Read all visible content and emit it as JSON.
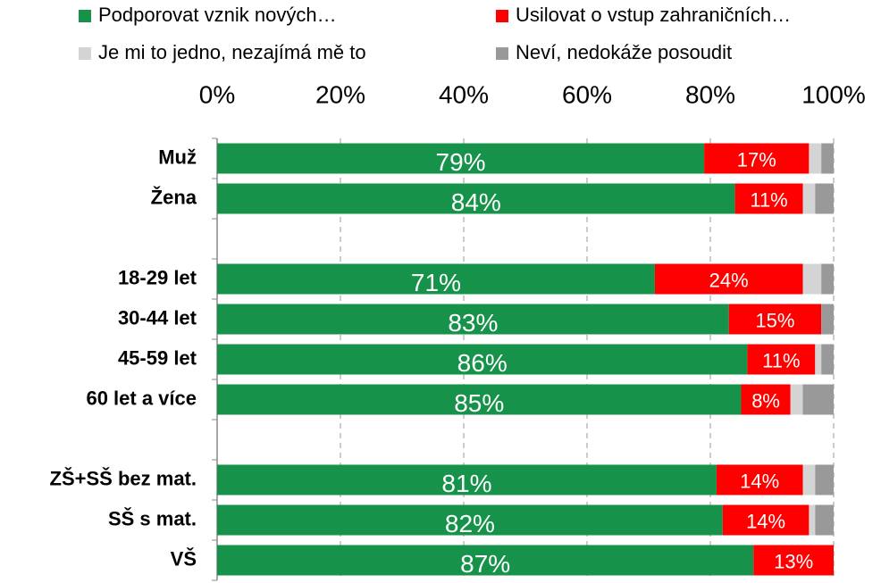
{
  "chart_data": {
    "type": "stacked_barh",
    "categories": [
      "Muž",
      "Žena",
      null,
      "18-29 let",
      "30-44 let",
      "45-59 let",
      "60 let a více",
      null,
      "ZŠ+SŠ bez mat.",
      "SŠ s mat.",
      "VŠ"
    ],
    "series": [
      {
        "name": "Podporovat vznik nových…",
        "color": "#17924a",
        "values": [
          79,
          84,
          null,
          71,
          83,
          86,
          85,
          null,
          81,
          82,
          87
        ],
        "value_labels": [
          "79%",
          "84%",
          null,
          "71%",
          "83%",
          "86%",
          "85%",
          null,
          "81%",
          "82%",
          "87%"
        ]
      },
      {
        "name": "Usilovat o vstup zahraničních…",
        "color": "#ff0000",
        "values": [
          17,
          11,
          null,
          24,
          15,
          11,
          8,
          null,
          14,
          14,
          13
        ],
        "value_labels": [
          "17%",
          "11%",
          null,
          "24%",
          "15%",
          "11%",
          "8%",
          null,
          "14%",
          "14%",
          "13%"
        ]
      },
      {
        "name": "Je mi to jedno, nezajímá mě to",
        "color": "#d4d4d4",
        "values": [
          2,
          2,
          null,
          3,
          0,
          1,
          2,
          null,
          2,
          1,
          0
        ]
      },
      {
        "name": "Neví, nedokáže posoudit",
        "color": "#999999",
        "values": [
          2,
          3,
          null,
          2,
          2,
          2,
          5,
          null,
          3,
          3,
          0
        ]
      }
    ],
    "xlim": [
      0,
      100
    ],
    "xticks": [
      {
        "value": 0,
        "label": "0%"
      },
      {
        "value": 20,
        "label": "20%"
      },
      {
        "value": 40,
        "label": "40%"
      },
      {
        "value": 60,
        "label": "60%"
      },
      {
        "value": 80,
        "label": "80%"
      },
      {
        "value": 100,
        "label": "100%"
      }
    ],
    "grid": true,
    "legend": "top"
  }
}
